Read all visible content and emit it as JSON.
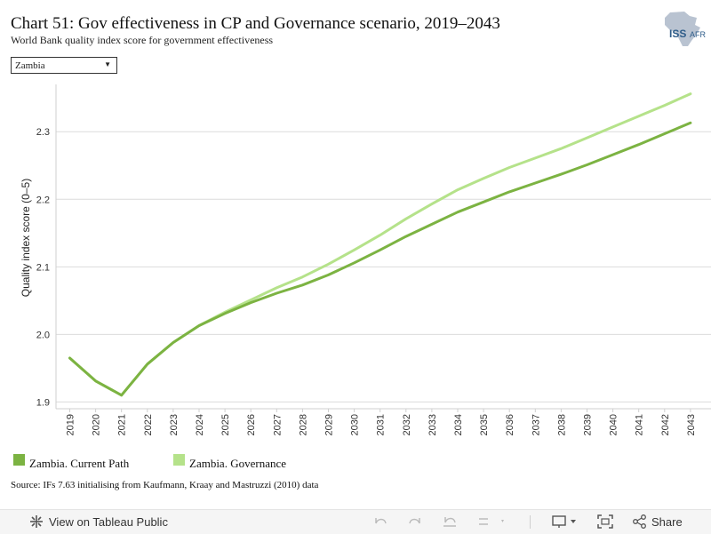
{
  "header": {
    "title": "Chart 51: Gov effectiveness in CP and Governance scenario, 2019–2043",
    "subtitle": "World Bank quality index score for government effectiveness"
  },
  "logo": {
    "icon": "africa-map-icon",
    "text": "ISS",
    "text_suffix": "AFR"
  },
  "country_select": {
    "value": "Zambia",
    "icon": "caret-down-icon"
  },
  "chart_data": {
    "type": "line",
    "x": [
      2019,
      2020,
      2021,
      2022,
      2023,
      2024,
      2025,
      2026,
      2027,
      2028,
      2029,
      2030,
      2031,
      2032,
      2033,
      2034,
      2035,
      2036,
      2037,
      2038,
      2039,
      2040,
      2041,
      2042,
      2043
    ],
    "x_tick_labels": [
      "2019",
      "2020",
      "2021",
      "2022",
      "2023",
      "2024",
      "2025",
      "2026",
      "2027",
      "2028",
      "2029",
      "2030",
      "2031",
      "2032",
      "2033",
      "2034",
      "2035",
      "2036",
      "2037",
      "2038",
      "2039",
      "2040",
      "2041",
      "2042",
      "2043"
    ],
    "ylabel": "Quality index score (0–5)",
    "ylim": [
      1.89,
      2.37
    ],
    "y_ticks": [
      1.9,
      2.0,
      2.1,
      2.2,
      2.3
    ],
    "y_tick_labels": [
      "1.9",
      "2.0",
      "2.1",
      "2.2",
      "2.3"
    ],
    "grid": "horizontal",
    "legend_position": "bottom",
    "series": [
      {
        "name": "Zambia. Current Path",
        "color": "#7cb342",
        "values": [
          1.965,
          1.931,
          1.91,
          1.956,
          1.988,
          2.013,
          2.031,
          2.047,
          2.061,
          2.073,
          2.088,
          2.106,
          2.125,
          2.145,
          2.163,
          2.181,
          2.196,
          2.211,
          2.224,
          2.237,
          2.251,
          2.266,
          2.281,
          2.297,
          2.313
        ]
      },
      {
        "name": "Zambia. Governance",
        "color": "#b5e28a",
        "values": [
          1.965,
          1.931,
          1.91,
          1.956,
          1.988,
          2.013,
          2.033,
          2.051,
          2.069,
          2.085,
          2.104,
          2.125,
          2.147,
          2.171,
          2.193,
          2.214,
          2.231,
          2.247,
          2.261,
          2.275,
          2.291,
          2.307,
          2.323,
          2.339,
          2.356
        ]
      }
    ]
  },
  "source": "Source: IFs 7.63 initialising from Kaufmann, Kraay and Mastruzzi (2010) data",
  "toolbar": {
    "view_label": "View on Tableau Public",
    "share_label": "Share",
    "icons": [
      "tableau-icon",
      "undo-icon",
      "redo-icon",
      "revert-icon",
      "refresh-icon",
      "download-icon",
      "fullscreen-icon",
      "share-icon"
    ]
  }
}
